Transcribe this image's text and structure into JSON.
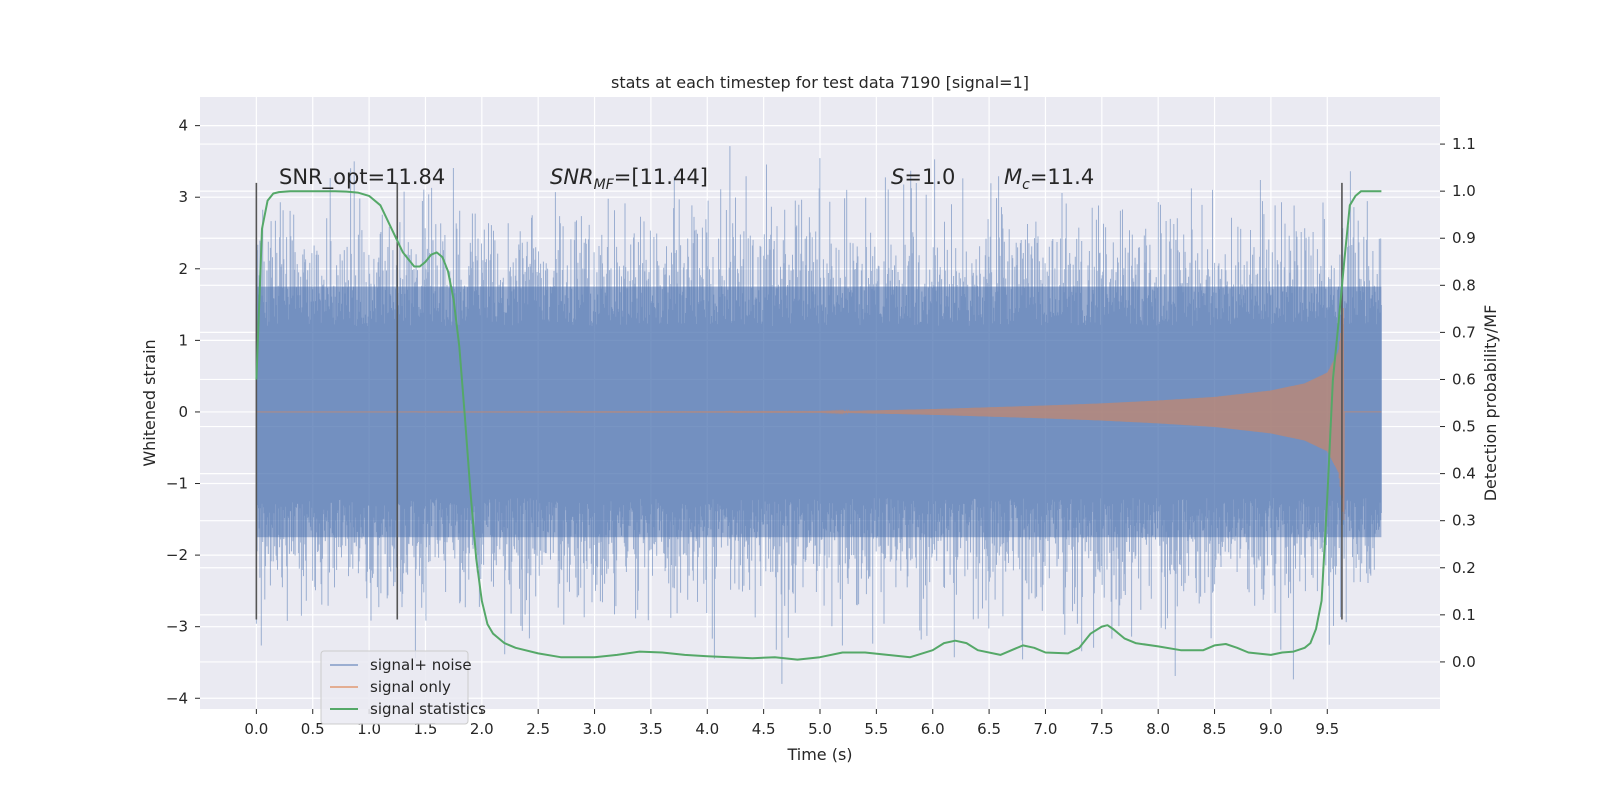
{
  "chart_data": {
    "type": "line",
    "title": "stats at each timestep for test data 7190 [signal=1]",
    "xlabel": "Time (s)",
    "ylabel": "Whitened strain",
    "y2label": "Detection probability/MF",
    "xlim": [
      -0.5,
      10.5
    ],
    "ylim": [
      -4.15,
      4.4
    ],
    "y2lim": [
      -0.1,
      1.2
    ],
    "xticks": [
      "0.0",
      "0.5",
      "1.0",
      "1.5",
      "2.0",
      "2.5",
      "3.0",
      "3.5",
      "4.0",
      "4.5",
      "5.0",
      "5.5",
      "6.0",
      "6.5",
      "7.0",
      "7.5",
      "8.0",
      "8.5",
      "9.0",
      "9.5"
    ],
    "yticks": [
      "4",
      "3",
      "2",
      "1",
      "0",
      "−1",
      "−2",
      "−3",
      "−4"
    ],
    "y2ticks": [
      "1.1",
      "1.0",
      "0.9",
      "0.8",
      "0.7",
      "0.6",
      "0.5",
      "0.4",
      "0.3",
      "0.2",
      "0.1",
      "0.0"
    ],
    "grid": true,
    "legend_position": "lower-left",
    "annotations": {
      "snr_opt": "SNR_opt=11.84",
      "snr_mf_base": "SNR",
      "snr_mf_sub": "MF",
      "snr_mf_value": "=[11.44]",
      "s_var": "S",
      "s_value": "=1.0",
      "mc_var": "M",
      "mc_sub": "c",
      "mc_value": "=11.4"
    },
    "vlines": [
      {
        "x": 0.0,
        "ymin": -2.9,
        "ymax": 3.2
      },
      {
        "x": 1.25,
        "ymin": -2.9,
        "ymax": 3.2
      },
      {
        "x": 9.63,
        "ymin": -2.9,
        "ymax": 3.2
      }
    ],
    "series": [
      {
        "name": "signal+ noise",
        "color": "#4c72b0",
        "opacity": 0.5,
        "x_start": 0.0,
        "x_end": 9.98,
        "band_y": [
          -1.75,
          1.75
        ],
        "peak_y": [
          -3.8,
          4.05
        ]
      },
      {
        "name": "signal only",
        "color": "#dd8452",
        "opacity": 0.55,
        "x_start": 0.0,
        "x_end": 9.98,
        "chirp_end": 9.65,
        "envelope": {
          "x": [
            0.0,
            5.0,
            6.0,
            7.0,
            7.5,
            8.0,
            8.5,
            9.0,
            9.3,
            9.5,
            9.6,
            9.65
          ],
          "amp": [
            0.0,
            0.005,
            0.04,
            0.09,
            0.12,
            0.16,
            0.21,
            0.3,
            0.4,
            0.55,
            0.85,
            1.55
          ]
        }
      },
      {
        "name": "signal statistics",
        "color": "#55a868",
        "axis": "right",
        "x": [
          0.0,
          0.05,
          0.1,
          0.15,
          0.2,
          0.3,
          0.4,
          0.5,
          0.6,
          0.7,
          0.8,
          0.9,
          1.0,
          1.1,
          1.2,
          1.3,
          1.4,
          1.45,
          1.5,
          1.55,
          1.6,
          1.65,
          1.7,
          1.75,
          1.8,
          1.85,
          1.9,
          1.95,
          2.0,
          2.05,
          2.1,
          2.2,
          2.3,
          2.5,
          2.7,
          3.0,
          3.2,
          3.4,
          3.6,
          3.8,
          4.0,
          4.2,
          4.4,
          4.6,
          4.8,
          5.0,
          5.2,
          5.4,
          5.6,
          5.8,
          6.0,
          6.1,
          6.2,
          6.3,
          6.4,
          6.6,
          6.8,
          6.9,
          7.0,
          7.2,
          7.3,
          7.4,
          7.5,
          7.55,
          7.6,
          7.7,
          7.8,
          8.0,
          8.2,
          8.4,
          8.5,
          8.6,
          8.7,
          8.8,
          9.0,
          9.1,
          9.2,
          9.3,
          9.35,
          9.4,
          9.45,
          9.5,
          9.55,
          9.6,
          9.65,
          9.7,
          9.75,
          9.8,
          9.9,
          9.98
        ],
        "y": [
          0.6,
          0.92,
          0.98,
          0.995,
          0.998,
          1.0,
          1.0,
          1.0,
          1.0,
          1.0,
          0.999,
          0.997,
          0.99,
          0.97,
          0.92,
          0.87,
          0.84,
          0.84,
          0.85,
          0.865,
          0.87,
          0.86,
          0.83,
          0.77,
          0.67,
          0.52,
          0.36,
          0.22,
          0.13,
          0.08,
          0.06,
          0.04,
          0.03,
          0.018,
          0.01,
          0.01,
          0.015,
          0.022,
          0.02,
          0.015,
          0.012,
          0.01,
          0.008,
          0.01,
          0.005,
          0.01,
          0.02,
          0.02,
          0.015,
          0.01,
          0.025,
          0.04,
          0.045,
          0.04,
          0.025,
          0.015,
          0.035,
          0.03,
          0.02,
          0.018,
          0.03,
          0.06,
          0.075,
          0.078,
          0.07,
          0.05,
          0.04,
          0.033,
          0.025,
          0.025,
          0.035,
          0.038,
          0.03,
          0.02,
          0.015,
          0.02,
          0.022,
          0.03,
          0.04,
          0.07,
          0.13,
          0.35,
          0.6,
          0.72,
          0.85,
          0.97,
          0.99,
          1.0,
          1.0,
          1.0
        ]
      }
    ]
  }
}
